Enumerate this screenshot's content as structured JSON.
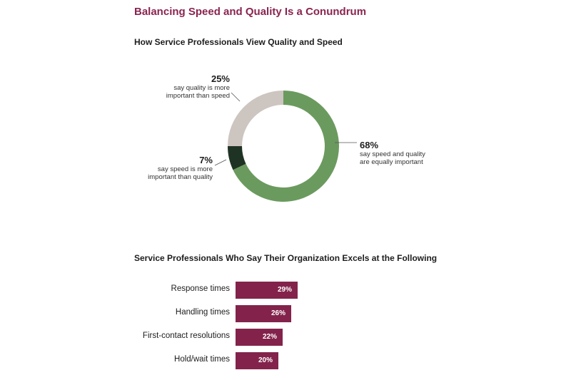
{
  "title": "Balancing Speed and Quality Is a Conundrum",
  "chart_data": [
    {
      "type": "pie",
      "title": "How Service Professionals View Quality and Speed",
      "slices": [
        {
          "pct_label": "68%",
          "label_line1": "say speed and quality",
          "label_line2": "are equally important",
          "value": 68,
          "color": "#6b9a5e"
        },
        {
          "pct_label": "7%",
          "label_line1": "say speed is more",
          "label_line2": "important than quality",
          "value": 7,
          "color": "#1f3324"
        },
        {
          "pct_label": "25%",
          "label_line1": "say quality is more",
          "label_line2": "important than speed",
          "value": 25,
          "color": "#cdc5c0"
        }
      ]
    },
    {
      "type": "bar",
      "title": "Service Professionals Who Say Their Organization Excels at the Following",
      "categories": [
        "Response times",
        "Handling times",
        "First-contact resolutions",
        "Hold/wait times"
      ],
      "values": [
        29,
        26,
        22,
        20
      ],
      "value_labels": [
        "29%",
        "26%",
        "22%",
        "20%"
      ],
      "color": "#83234c"
    }
  ]
}
